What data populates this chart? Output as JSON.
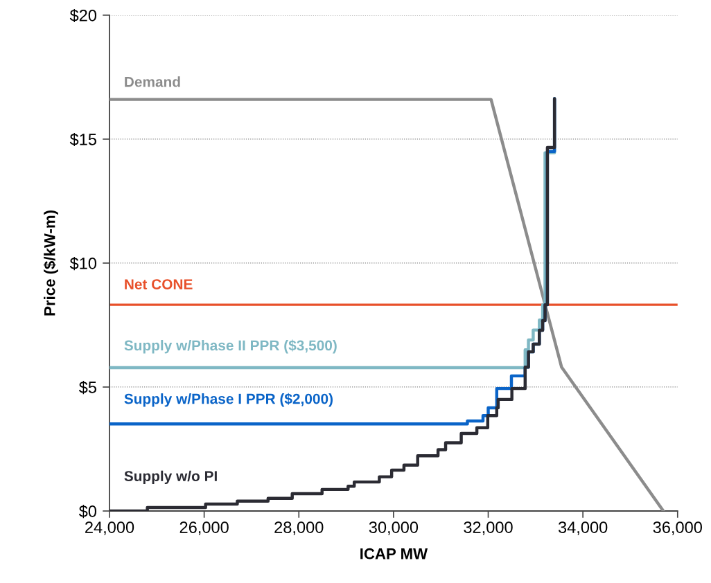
{
  "chart_data": {
    "type": "step",
    "xlabel": "ICAP MW",
    "ylabel": "Price ($/kW-m)",
    "xlim": [
      24000,
      36000
    ],
    "xticks": [
      {
        "value": 24000,
        "label": "24,000"
      },
      {
        "value": 26000,
        "label": "26,000"
      },
      {
        "value": 28000,
        "label": "28,000"
      },
      {
        "value": 30000,
        "label": "30,000"
      },
      {
        "value": 32000,
        "label": "32,000"
      },
      {
        "value": 34000,
        "label": "34,000"
      },
      {
        "value": 36000,
        "label": "36,000"
      }
    ],
    "ylim": [
      0,
      20
    ],
    "yticks": [
      {
        "value": 0,
        "label": "$0"
      },
      {
        "value": 5,
        "label": "$5"
      },
      {
        "value": 10,
        "label": "$10"
      },
      {
        "value": 15,
        "label": "$15"
      },
      {
        "value": 20,
        "label": "$20"
      }
    ],
    "grid": "y",
    "legend": false,
    "series": [
      {
        "name": "Demand",
        "type": "line",
        "color": "#8c8c8c",
        "x": [
          24000,
          32060,
          33550,
          35700
        ],
        "values": [
          16.6,
          16.6,
          5.8,
          0
        ]
      },
      {
        "name": "Supply w/Phase II PPR ($3,500)",
        "color": "#7fb8c4",
        "x": [
          24000,
          32780,
          32850,
          32950,
          33080,
          33150,
          33200,
          33250,
          33400
        ],
        "values": [
          5.78,
          6.5,
          6.9,
          7.3,
          7.7,
          8.32,
          14.45,
          14.45,
          16.63
        ]
      },
      {
        "name": "Supply w/Phase I PPR ($2,000)",
        "color": "#0a64c8",
        "x": [
          24000,
          31560,
          31890,
          32000,
          32180,
          32490,
          32780,
          32850,
          32950,
          33080,
          33150,
          33200,
          33250,
          33400
        ],
        "values": [
          3.51,
          3.63,
          3.85,
          4.16,
          4.94,
          5.45,
          5.8,
          6.42,
          6.73,
          7.29,
          7.68,
          8.32,
          14.5,
          16.63
        ]
      },
      {
        "name": "Supply w/o PI",
        "color": "#2b2b33",
        "x": [
          24000,
          24800,
          26030,
          26700,
          27350,
          27860,
          28490,
          29040,
          29170,
          29700,
          29960,
          30220,
          30510,
          30940,
          31100,
          31430,
          31760,
          31990,
          32180,
          32210,
          32500,
          32780,
          32850,
          32950,
          33080,
          33150,
          33200,
          33250,
          33400
        ],
        "values": [
          0,
          0.14,
          0.28,
          0.4,
          0.51,
          0.7,
          0.87,
          1.0,
          1.17,
          1.38,
          1.65,
          1.85,
          2.23,
          2.47,
          2.75,
          3.13,
          3.36,
          3.85,
          4.16,
          4.5,
          4.94,
          5.8,
          6.42,
          6.73,
          7.29,
          7.68,
          8.32,
          14.66,
          16.63
        ]
      }
    ],
    "ref_lines": [
      {
        "axis": "y",
        "value": 8.32,
        "label": "Net CONE",
        "color": "#e8502a"
      }
    ]
  }
}
